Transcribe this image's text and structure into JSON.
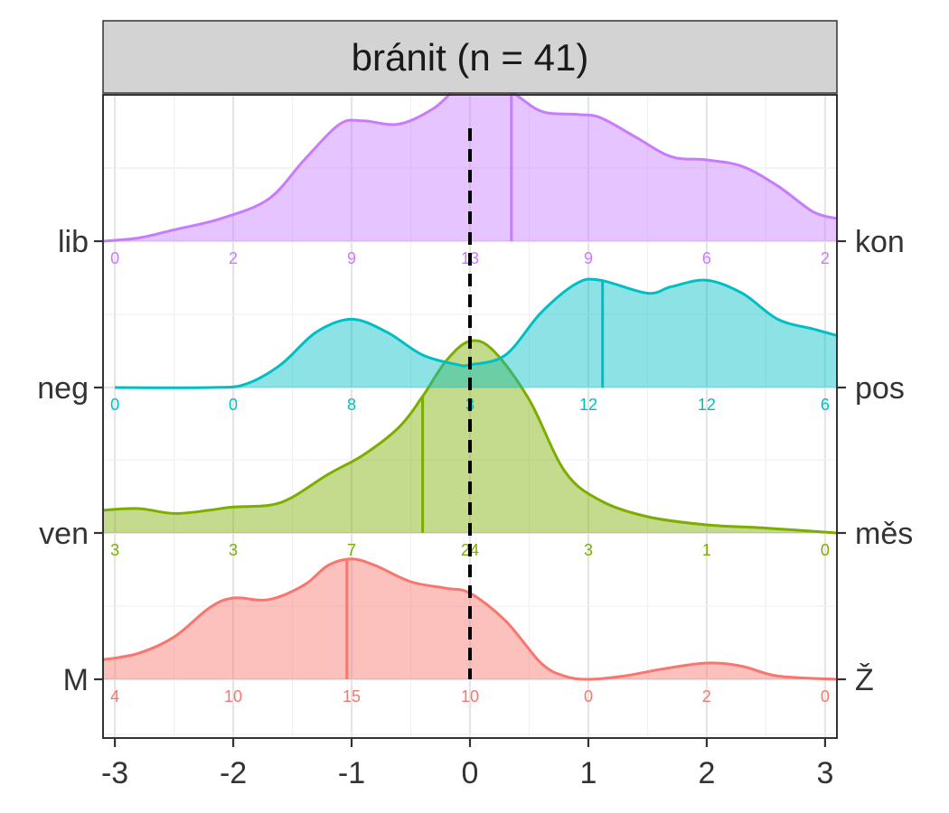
{
  "chart_data": {
    "type": "area",
    "title": "bránit (n = 41)",
    "xlabel": "",
    "ylabel": "",
    "xlim": [
      -3.1,
      3.1
    ],
    "x_ticks": [
      "-3",
      "-2",
      "-1",
      "0",
      "1",
      "2",
      "3"
    ],
    "grid": true,
    "reference_line": {
      "x": 0,
      "style": "dashed",
      "color": "#000000"
    },
    "count_positions": [
      -3,
      -2,
      -1,
      0,
      1,
      2,
      3
    ],
    "series": [
      {
        "left_label": "M",
        "right_label": "Ž",
        "color": "#F8766D",
        "mean": -1.04,
        "counts": [
          4,
          10,
          15,
          10,
          0,
          2,
          0
        ],
        "density": [
          [
            -3.1,
            0.12
          ],
          [
            -2.8,
            0.16
          ],
          [
            -2.5,
            0.26
          ],
          [
            -2.2,
            0.44
          ],
          [
            -2.0,
            0.5
          ],
          [
            -1.7,
            0.49
          ],
          [
            -1.4,
            0.58
          ],
          [
            -1.2,
            0.7
          ],
          [
            -1.0,
            0.74
          ],
          [
            -0.8,
            0.7
          ],
          [
            -0.5,
            0.6
          ],
          [
            -0.2,
            0.56
          ],
          [
            0.0,
            0.53
          ],
          [
            0.3,
            0.36
          ],
          [
            0.6,
            0.1
          ],
          [
            0.8,
            0.02
          ],
          [
            1.0,
            0.0
          ],
          [
            1.3,
            0.02
          ],
          [
            1.6,
            0.06
          ],
          [
            2.0,
            0.1
          ],
          [
            2.3,
            0.08
          ],
          [
            2.6,
            0.02
          ],
          [
            3.1,
            0.0
          ]
        ]
      },
      {
        "left_label": "ven",
        "right_label": "měs",
        "color": "#7CAE00",
        "mean": -0.4,
        "counts": [
          3,
          3,
          7,
          24,
          3,
          1,
          0
        ],
        "density": [
          [
            -3.1,
            0.14
          ],
          [
            -2.8,
            0.15
          ],
          [
            -2.5,
            0.12
          ],
          [
            -2.2,
            0.14
          ],
          [
            -2.0,
            0.16
          ],
          [
            -1.7,
            0.17
          ],
          [
            -1.5,
            0.22
          ],
          [
            -1.2,
            0.36
          ],
          [
            -0.9,
            0.48
          ],
          [
            -0.6,
            0.65
          ],
          [
            -0.4,
            0.84
          ],
          [
            -0.2,
            1.06
          ],
          [
            0.0,
            1.18
          ],
          [
            0.2,
            1.12
          ],
          [
            0.5,
            0.82
          ],
          [
            0.8,
            0.38
          ],
          [
            1.1,
            0.2
          ],
          [
            1.5,
            0.1
          ],
          [
            2.0,
            0.05
          ],
          [
            2.5,
            0.03
          ],
          [
            3.1,
            0.0
          ]
        ]
      },
      {
        "left_label": "neg",
        "right_label": "pos",
        "color": "#00BFC4",
        "mean": 1.12,
        "counts": [
          0,
          0,
          8,
          3,
          12,
          12,
          6
        ],
        "density": [
          [
            -3.0,
            0.0
          ],
          [
            -2.2,
            0.0
          ],
          [
            -1.9,
            0.02
          ],
          [
            -1.6,
            0.14
          ],
          [
            -1.3,
            0.34
          ],
          [
            -1.0,
            0.42
          ],
          [
            -0.7,
            0.34
          ],
          [
            -0.4,
            0.2
          ],
          [
            -0.1,
            0.14
          ],
          [
            0.0,
            0.14
          ],
          [
            0.3,
            0.2
          ],
          [
            0.6,
            0.46
          ],
          [
            0.9,
            0.64
          ],
          [
            1.1,
            0.66
          ],
          [
            1.5,
            0.58
          ],
          [
            1.7,
            0.62
          ],
          [
            2.0,
            0.66
          ],
          [
            2.3,
            0.58
          ],
          [
            2.6,
            0.42
          ],
          [
            2.9,
            0.36
          ],
          [
            3.1,
            0.32
          ]
        ]
      },
      {
        "left_label": "lib",
        "right_label": "kon",
        "color": "#C77CFF",
        "mean": 0.35,
        "counts": [
          0,
          2,
          9,
          13,
          9,
          6,
          2
        ],
        "density": [
          [
            -3.1,
            0.0
          ],
          [
            -2.8,
            0.02
          ],
          [
            -2.5,
            0.07
          ],
          [
            -2.1,
            0.14
          ],
          [
            -1.7,
            0.26
          ],
          [
            -1.4,
            0.5
          ],
          [
            -1.1,
            0.72
          ],
          [
            -0.9,
            0.74
          ],
          [
            -0.6,
            0.72
          ],
          [
            -0.3,
            0.82
          ],
          [
            0.0,
            1.0
          ],
          [
            0.3,
            0.94
          ],
          [
            0.6,
            0.8
          ],
          [
            0.9,
            0.78
          ],
          [
            1.1,
            0.76
          ],
          [
            1.4,
            0.64
          ],
          [
            1.7,
            0.52
          ],
          [
            2.0,
            0.5
          ],
          [
            2.3,
            0.46
          ],
          [
            2.6,
            0.34
          ],
          [
            2.9,
            0.18
          ],
          [
            3.1,
            0.14
          ]
        ]
      }
    ]
  }
}
